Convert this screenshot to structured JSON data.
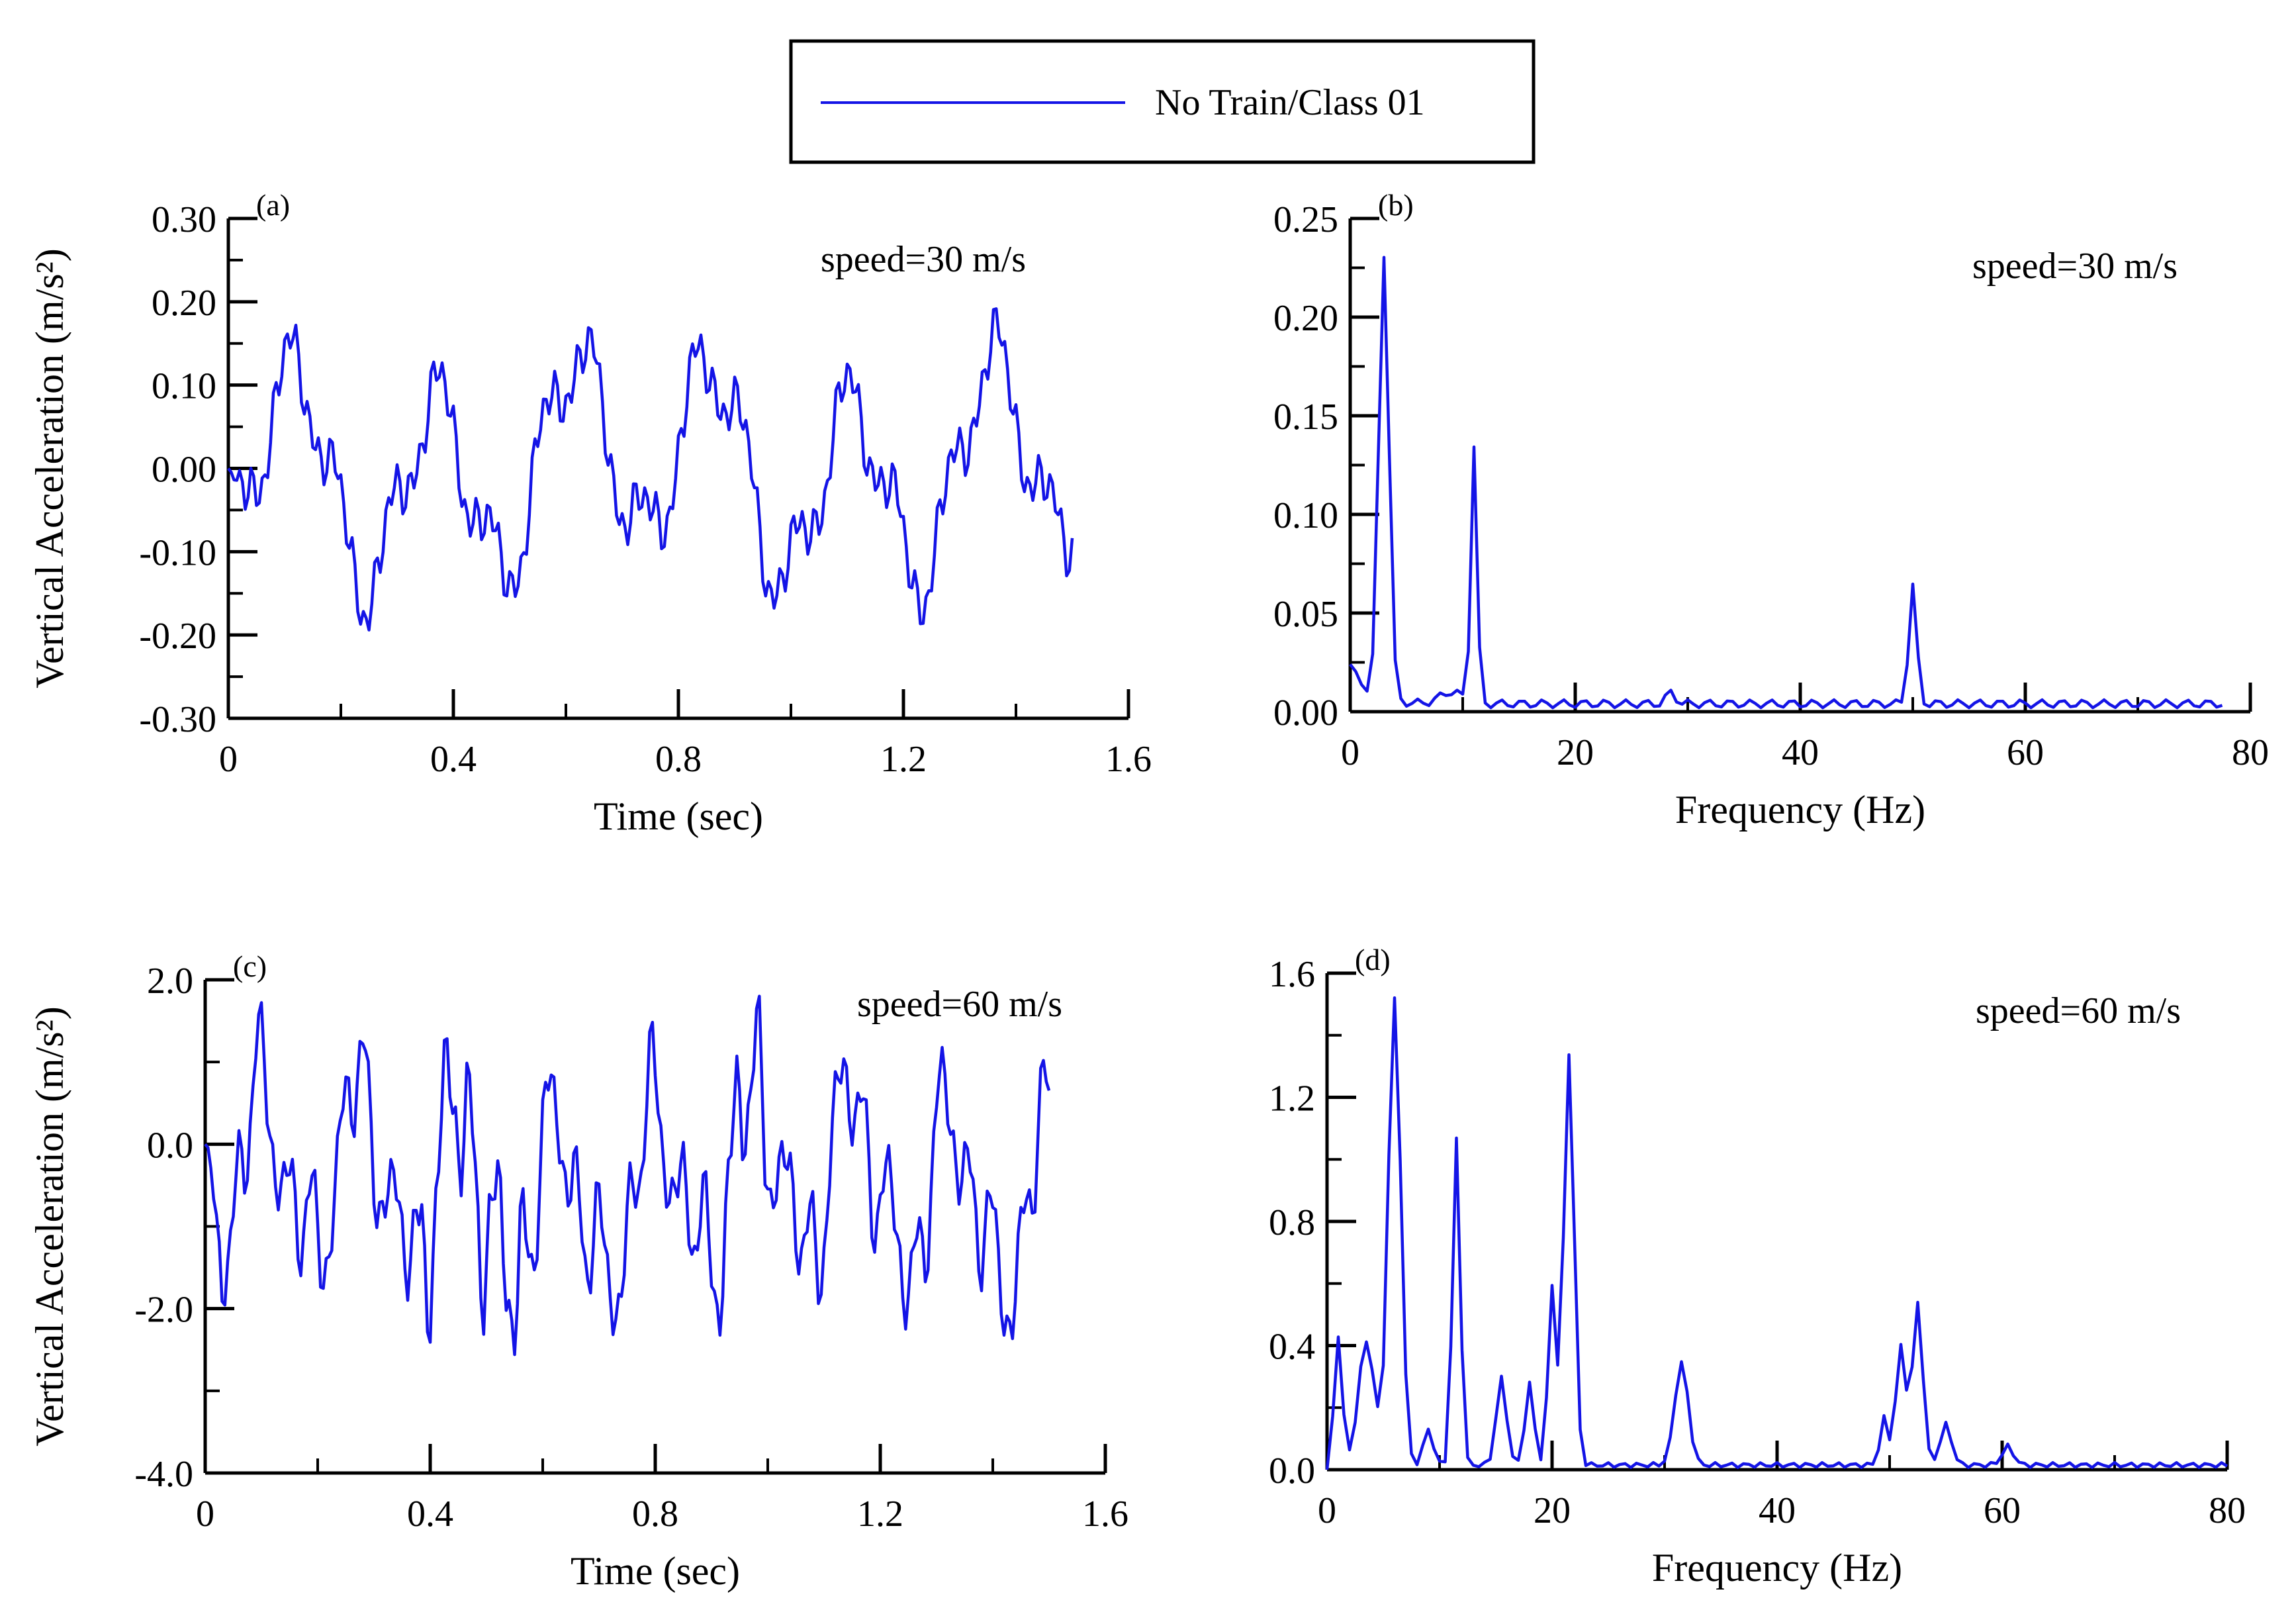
{
  "legend": {
    "label": "No Train/Class 01",
    "line_color": "#1414E6"
  },
  "colors": {
    "series": "#1414E6",
    "axes": "#000000"
  },
  "chart_data": [
    {
      "id": "a",
      "panel_label": "(a)",
      "type": "line",
      "speed_text": "speed=30 m/s",
      "xlabel": "Time (sec)",
      "ylabel": "Vertical Acceleration (m/s²)",
      "xlim": [
        0,
        1.6
      ],
      "ylim": [
        -0.3,
        0.3
      ],
      "xticks": [
        0,
        0.4,
        0.8,
        1.2,
        1.6
      ],
      "xtick_labels": [
        "0",
        "0.4",
        "0.8",
        "1.2",
        "1.6"
      ],
      "yticks": [
        -0.3,
        -0.2,
        -0.1,
        0,
        0.1,
        0.2,
        0.3
      ],
      "ytick_labels": [
        "-0.30",
        "-0.20",
        "-0.10",
        "0.00",
        "0.10",
        "0.20",
        "0.30"
      ],
      "series": [
        {
          "name": "No Train/Class 01",
          "x": [],
          "y": []
        }
      ]
    },
    {
      "id": "b",
      "panel_label": "(b)",
      "type": "line",
      "speed_text": "speed=30 m/s",
      "xlabel": "Frequency (Hz)",
      "ylabel": "",
      "xlim": [
        0,
        80
      ],
      "ylim": [
        0,
        0.25
      ],
      "xticks": [
        0,
        20,
        40,
        60,
        80
      ],
      "xtick_labels": [
        "0",
        "20",
        "40",
        "60",
        "80"
      ],
      "yticks": [
        0,
        0.05,
        0.1,
        0.15,
        0.2,
        0.25
      ],
      "ytick_labels": [
        "0.00",
        "0.05",
        "0.10",
        "0.15",
        "0.20",
        "0.25"
      ],
      "series": [
        {
          "name": "No Train/Class 01",
          "x": [],
          "y": []
        }
      ]
    },
    {
      "id": "c",
      "panel_label": "(c)",
      "type": "line",
      "speed_text": "speed=60 m/s",
      "xlabel": "Time (sec)",
      "ylabel": "Vertical Acceleration (m/s²)",
      "xlim": [
        0,
        1.6
      ],
      "ylim": [
        -4.0,
        2.0
      ],
      "xticks": [
        0,
        0.4,
        0.8,
        1.2,
        1.6
      ],
      "xtick_labels": [
        "0",
        "0.4",
        "0.8",
        "1.2",
        "1.6"
      ],
      "yticks": [
        -4,
        -2,
        0,
        2
      ],
      "ytick_labels": [
        "-4.0",
        "-2.0",
        "0.0",
        "2.0"
      ],
      "series": [
        {
          "name": "No Train/Class 01",
          "x": [],
          "y": []
        }
      ]
    },
    {
      "id": "d",
      "panel_label": "(d)",
      "type": "line",
      "speed_text": "speed=60 m/s",
      "xlabel": "Frequency (Hz)",
      "ylabel": "",
      "xlim": [
        0,
        80
      ],
      "ylim": [
        0,
        1.6
      ],
      "xticks": [
        0,
        20,
        40,
        60,
        80
      ],
      "xtick_labels": [
        "0",
        "20",
        "40",
        "60",
        "80"
      ],
      "yticks": [
        0,
        0.4,
        0.8,
        1.2,
        1.6
      ],
      "ytick_labels": [
        "0.0",
        "0.4",
        "0.8",
        "1.2",
        "1.6"
      ],
      "series": [
        {
          "name": "No Train/Class 01",
          "x": [],
          "y": []
        }
      ]
    }
  ]
}
